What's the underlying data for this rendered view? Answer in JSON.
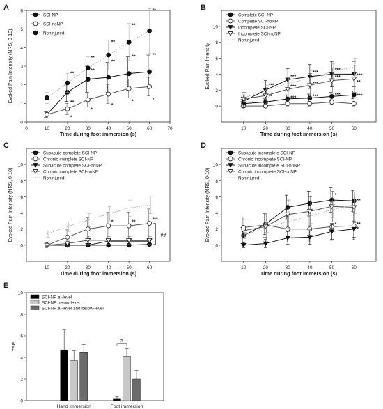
{
  "chart_data": [
    {
      "panel": "A",
      "type": "line",
      "xlabel": "Time during foot immersion (s)",
      "ylabel": "Evoked Pain Intensity  (NRS, 0-10)",
      "x": [
        10,
        20,
        30,
        40,
        50,
        60
      ],
      "xlim": [
        0,
        70
      ],
      "ylim": [
        0,
        6
      ],
      "xticks": [
        0,
        10,
        20,
        30,
        40,
        50,
        60,
        70
      ],
      "yticks": [
        0,
        1,
        2,
        3,
        4,
        5,
        6
      ],
      "legend": "top-left",
      "series": [
        {
          "name": "SCI-NP",
          "values": [
            0.4,
            1.6,
            2.3,
            2.4,
            2.6,
            2.7
          ],
          "err": [
            0.15,
            0.5,
            0.7,
            0.8,
            0.9,
            0.9
          ],
          "marker": "filled-circle",
          "line": "solid",
          "color": "#111111"
        },
        {
          "name": "SCI-noNP",
          "values": [
            0.4,
            0.7,
            1.2,
            1.5,
            1.8,
            1.9
          ],
          "err": [
            0.15,
            0.3,
            0.4,
            0.5,
            0.5,
            0.5
          ],
          "marker": "open-circle",
          "line": "solid",
          "color": "#555555"
        },
        {
          "name": "Noninjured",
          "values": [
            1.3,
            2.1,
            2.9,
            3.6,
            4.3,
            4.9
          ],
          "err": [
            0.3,
            0.5,
            0.6,
            0.8,
            1.0,
            1.2
          ],
          "marker": "filled-circle",
          "line": "dotted",
          "color": "#aaaaaa"
        }
      ],
      "annotations": [
        {
          "text": "**",
          "x": 20,
          "y": 2.6
        },
        {
          "text": "**",
          "x": 20,
          "y": 1.05
        },
        {
          "text": "*",
          "x": 20,
          "y": 0.25
        },
        {
          "text": "**",
          "x": 30,
          "y": 3.45
        },
        {
          "text": "**",
          "x": 30,
          "y": 2.75
        },
        {
          "text": "*",
          "x": 30,
          "y": 0.65
        },
        {
          "text": "**",
          "x": 40,
          "y": 4.3
        },
        {
          "text": "**",
          "x": 40,
          "y": 3.25
        },
        {
          "text": "*",
          "x": 40,
          "y": 0.9
        },
        {
          "text": "**",
          "x": 50,
          "y": 5.2
        },
        {
          "text": "**",
          "x": 50,
          "y": 3.5
        },
        {
          "text": "*",
          "x": 50,
          "y": 1.1
        },
        {
          "text": "**",
          "x": 60,
          "y": 6.0
        },
        {
          "text": "**",
          "x": 60,
          "y": 3.6
        },
        {
          "text": "*",
          "x": 60,
          "y": 1.2
        }
      ]
    },
    {
      "panel": "B",
      "type": "line",
      "xlabel": "Time during foot immersion (s)",
      "ylabel": "Evoked Pain Intensity",
      "x": [
        10,
        20,
        30,
        40,
        50,
        60
      ],
      "xlim": [
        0,
        70
      ],
      "ylim": [
        -2,
        12
      ],
      "xticks": [
        10,
        20,
        30,
        40,
        50,
        60
      ],
      "yticks": [
        0,
        2,
        4,
        6,
        8,
        10
      ],
      "legend": "top-left",
      "series": [
        {
          "name": "Complete SCI-NP",
          "values": [
            0.3,
            0.5,
            0.9,
            1.0,
            1.2,
            1.4
          ],
          "err": [
            0.3,
            0.4,
            0.5,
            0.5,
            0.5,
            0.5
          ],
          "marker": "filled-circle",
          "line": "solid",
          "color": "#111111"
        },
        {
          "name": "Complete SCI-noNP",
          "values": [
            0.0,
            0.0,
            0.3,
            0.3,
            0.5,
            0.3
          ],
          "err": [
            0.2,
            0.2,
            0.3,
            0.3,
            0.3,
            0.3
          ],
          "marker": "open-circle",
          "line": "solid",
          "color": "#555555"
        },
        {
          "name": "Incomplete SCI-NP",
          "values": [
            0.6,
            2.0,
            3.3,
            3.7,
            4.0,
            4.0
          ],
          "err": [
            0.8,
            1.2,
            1.4,
            1.5,
            1.6,
            1.6
          ],
          "marker": "filled-triangle-down",
          "line": "solid",
          "color": "#111111"
        },
        {
          "name": "Incomplete SCI-noNP",
          "values": [
            0.9,
            1.3,
            2.1,
            2.6,
            3.2,
            3.4
          ],
          "err": [
            0.8,
            1.0,
            1.3,
            1.5,
            1.6,
            1.7
          ],
          "marker": "open-triangle-down",
          "line": "solid",
          "color": "#555555"
        },
        {
          "name": "Noninjured",
          "values": [
            1.0,
            2.0,
            2.8,
            3.5,
            4.3,
            4.9
          ],
          "err": [
            0.4,
            0.6,
            0.8,
            0.9,
            1.0,
            1.1
          ],
          "marker": "none",
          "line": "dotted",
          "color": "#aaaaaa"
        }
      ],
      "annotations": [
        {
          "text": "**",
          "x": 20,
          "y": 1.2
        },
        {
          "text": "***",
          "x": 20,
          "y": 2.6
        },
        {
          "text": "***",
          "x": 30,
          "y": 3.7
        },
        {
          "text": "***",
          "x": 30,
          "y": 2.4
        },
        {
          "text": "***",
          "x": 30,
          "y": 1.0
        },
        {
          "text": "***",
          "x": 40,
          "y": 4.2
        },
        {
          "text": "***",
          "x": 40,
          "y": 2.8
        },
        {
          "text": "***",
          "x": 40,
          "y": 1.2
        },
        {
          "text": "***",
          "x": 50,
          "y": 4.5
        },
        {
          "text": "***",
          "x": 50,
          "y": 3.6
        },
        {
          "text": "***",
          "x": 50,
          "y": 1.4
        },
        {
          "text": "***",
          "x": 60,
          "y": 3.8
        },
        {
          "text": "**",
          "x": 60,
          "y": 3.0
        },
        {
          "text": "***",
          "x": 60,
          "y": 1.3
        }
      ]
    },
    {
      "panel": "C",
      "type": "line",
      "xlabel": "Time during foot immersion (s)",
      "ylabel": "Evoked Pain Intensity  (NRS, 0-10)",
      "x": [
        10,
        20,
        30,
        40,
        50,
        60
      ],
      "xlim": [
        0,
        70
      ],
      "ylim": [
        -2,
        12
      ],
      "xticks": [
        10,
        20,
        30,
        40,
        50,
        60
      ],
      "yticks": [
        0,
        2,
        4,
        6,
        8,
        10
      ],
      "legend": "top-left",
      "series": [
        {
          "name": "Subacute complete SCI-NP",
          "values": [
            0.0,
            0.0,
            0.0,
            0.0,
            0.0,
            0.1
          ],
          "err": [
            0.0,
            0.0,
            0.0,
            0.0,
            0.0,
            0.3
          ],
          "marker": "filled-circle",
          "line": "solid",
          "color": "#111111"
        },
        {
          "name": "Chronic complete SCI-NP",
          "values": [
            0.0,
            1.0,
            2.0,
            2.4,
            2.4,
            2.7
          ],
          "err": [
            0.3,
            0.9,
            1.4,
            1.7,
            1.7,
            1.8
          ],
          "marker": "open-circle",
          "line": "solid",
          "color": "#555555"
        },
        {
          "name": "Subacute complete SCI-noNP",
          "values": [
            0.0,
            0.0,
            0.0,
            0.5,
            0.5,
            0.5
          ],
          "err": [
            0.0,
            0.0,
            0.0,
            0.4,
            0.4,
            0.4
          ],
          "marker": "filled-triangle-down",
          "line": "solid",
          "color": "#111111"
        },
        {
          "name": "Chronic complete SCI-noNP",
          "values": [
            0.0,
            0.2,
            0.6,
            0.6,
            0.6,
            0.6
          ],
          "err": [
            0.0,
            0.3,
            0.5,
            0.5,
            0.5,
            0.5
          ],
          "marker": "open-triangle-down",
          "line": "solid",
          "color": "#555555"
        },
        {
          "name": "Noninjured",
          "values": [
            1.4,
            2.3,
            3.1,
            3.9,
            4.6,
            5.0
          ],
          "err": [
            0.4,
            0.6,
            0.8,
            0.9,
            1.0,
            1.1
          ],
          "marker": "none",
          "line": "dotted",
          "color": "#aaaaaa"
        }
      ],
      "annotations": [
        {
          "text": "*",
          "x": 40,
          "y": 2.9
        },
        {
          "text": "**",
          "x": 50,
          "y": 2.9
        },
        {
          "text": "***",
          "x": 60,
          "y": 3.2
        },
        {
          "text": "##",
          "x": 64,
          "y": 1.2
        }
      ]
    },
    {
      "panel": "D",
      "type": "line",
      "xlabel": "Time during foot immersion (s)",
      "ylabel": "Evoked Pain Intensity  (NRS, 0-10)",
      "x": [
        10,
        20,
        30,
        40,
        50,
        60
      ],
      "xlim": [
        0,
        70
      ],
      "ylim": [
        -2,
        12
      ],
      "xticks": [
        10,
        20,
        30,
        40,
        50,
        60
      ],
      "yticks": [
        0,
        2,
        4,
        6,
        8,
        10
      ],
      "legend": "top-left",
      "series": [
        {
          "name": "Subacute incomplete SCI-NP",
          "values": [
            1.2,
            2.6,
            4.7,
            5.2,
            5.6,
            5.5
          ],
          "err": [
            1.0,
            1.3,
            1.5,
            1.5,
            1.5,
            1.3
          ],
          "marker": "filled-circle",
          "line": "solid",
          "color": "#111111"
        },
        {
          "name": "Chronic incomplete SCI-NP",
          "values": [
            2.2,
            2.5,
            2.0,
            2.0,
            2.3,
            2.4
          ],
          "err": [
            1.3,
            1.5,
            1.6,
            1.6,
            1.7,
            1.7
          ],
          "marker": "open-circle",
          "line": "solid",
          "color": "#555555"
        },
        {
          "name": "Subacute incomplete SCI-noNP",
          "values": [
            0.0,
            0.2,
            0.9,
            1.0,
            1.7,
            2.0
          ],
          "err": [
            0.3,
            0.5,
            0.8,
            0.9,
            1.0,
            1.0
          ],
          "marker": "filled-triangle-down",
          "line": "solid",
          "color": "#111111"
        },
        {
          "name": "Chronic incomplete SCI-noNP",
          "values": [
            1.8,
            2.3,
            3.8,
            4.2,
            4.8,
            4.7
          ],
          "err": [
            1.4,
            1.7,
            1.8,
            1.8,
            1.9,
            1.9
          ],
          "marker": "open-triangle-down",
          "line": "solid",
          "color": "#555555"
        },
        {
          "name": "Noninjured",
          "values": [
            1.2,
            2.2,
            2.9,
            3.6,
            4.4,
            5.0
          ],
          "err": [
            0.4,
            0.6,
            0.8,
            0.9,
            1.0,
            1.1
          ],
          "marker": "none",
          "line": "dotted",
          "color": "#aaaaaa"
        }
      ],
      "annotations": [
        {
          "text": "*",
          "x": 50,
          "y": 6.2
        },
        {
          "text": "**",
          "x": 60,
          "y": 5.5
        },
        {
          "text": "*",
          "x": 50,
          "y": 2.6
        },
        {
          "text": "**",
          "x": 60,
          "y": 2.6
        },
        {
          "text": "*",
          "x": 60,
          "y": 2.0
        }
      ]
    },
    {
      "panel": "E",
      "type": "bar",
      "ylabel": "TSP",
      "categories": [
        "Hand immersion",
        "Foot immersion"
      ],
      "ylim": [
        0,
        10
      ],
      "yticks": [
        0,
        2,
        4,
        6,
        8,
        10
      ],
      "legend": "top-left",
      "series": [
        {
          "name": "SCI-NP at-level",
          "values": [
            4.7,
            0.2
          ],
          "err": [
            1.9,
            0.15
          ],
          "color": "#000000"
        },
        {
          "name": "SCI-NP below-level",
          "values": [
            3.7,
            4.1
          ],
          "err": [
            0.9,
            0.7
          ],
          "color": "#c8c8c8"
        },
        {
          "name": "SCI-NP at-level and below-level",
          "values": [
            4.5,
            2.0
          ],
          "err": [
            0.7,
            0.8
          ],
          "color": "#6b6b6b"
        }
      ],
      "annotations": [
        {
          "text": "#",
          "between": [
            "SCI-NP at-level",
            "SCI-NP below-level"
          ],
          "category": "Foot immersion"
        }
      ]
    }
  ]
}
